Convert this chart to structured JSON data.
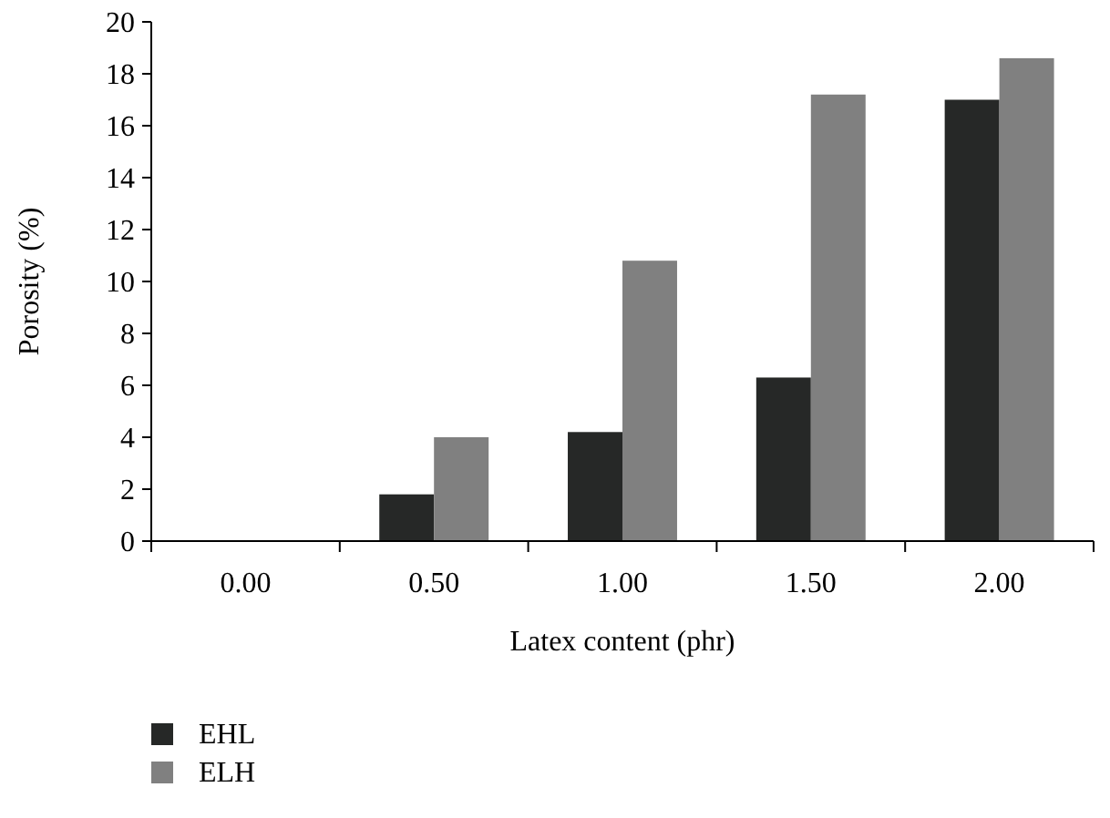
{
  "chart_data": {
    "type": "bar",
    "xlabel": "Latex content (phr)",
    "ylabel": "Porosity (%)",
    "categories": [
      "0.00",
      "0.50",
      "1.00",
      "1.50",
      "2.00"
    ],
    "series": [
      {
        "name": "EHL",
        "color": "#262827",
        "values": [
          0,
          1.8,
          4.2,
          6.3,
          17.0
        ]
      },
      {
        "name": "ELH",
        "color": "#808080",
        "values": [
          0,
          4.0,
          10.8,
          17.2,
          18.6
        ]
      }
    ],
    "ylim": [
      0,
      20
    ],
    "yticks": [
      0,
      2,
      4,
      6,
      8,
      10,
      12,
      14,
      16,
      18,
      20
    ],
    "grid": false,
    "legend": "bottom left"
  }
}
